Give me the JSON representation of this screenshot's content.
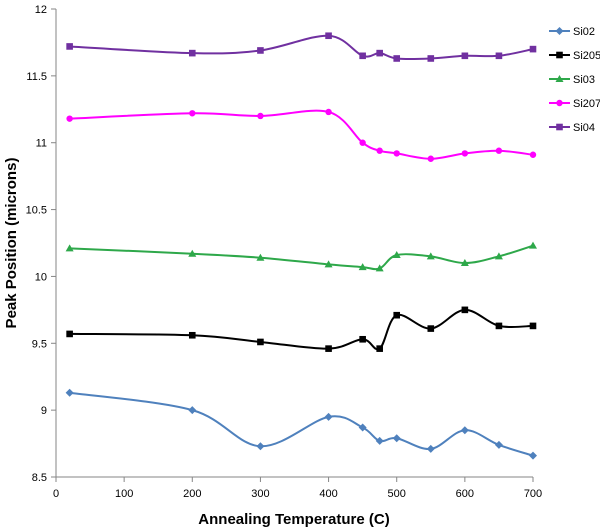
{
  "chart_data": {
    "type": "line",
    "title": "",
    "xlabel": "Annealing Temperature (C)",
    "ylabel": "Peak Position (microns)",
    "xlim": [
      0,
      700
    ],
    "ylim": [
      8.5,
      12
    ],
    "xticks": [
      0,
      100,
      200,
      300,
      400,
      500,
      600,
      700
    ],
    "yticks": [
      8.5,
      9,
      9.5,
      10,
      10.5,
      11,
      11.5,
      12
    ],
    "x": [
      20,
      200,
      300,
      400,
      450,
      475,
      500,
      550,
      600,
      650,
      700
    ],
    "grid": false,
    "legend_position": "right",
    "series": [
      {
        "name": "Si02",
        "color": "#4F81BD",
        "marker": "diamond",
        "values": [
          9.13,
          9.0,
          8.73,
          8.95,
          8.87,
          8.77,
          8.79,
          8.71,
          8.85,
          8.74,
          8.66
        ]
      },
      {
        "name": "Si205",
        "color": "#000000",
        "marker": "square",
        "values": [
          9.57,
          9.56,
          9.51,
          9.46,
          9.53,
          9.46,
          9.71,
          9.61,
          9.75,
          9.63,
          9.63
        ]
      },
      {
        "name": "Si03",
        "color": "#2EA84A",
        "marker": "triangle",
        "values": [
          10.21,
          10.17,
          10.14,
          10.09,
          10.07,
          10.06,
          10.16,
          10.15,
          10.1,
          10.15,
          10.23
        ]
      },
      {
        "name": "Si207",
        "color": "#FF00FF",
        "marker": "circle",
        "values": [
          11.18,
          11.22,
          11.2,
          11.23,
          11.0,
          10.94,
          10.92,
          10.88,
          10.92,
          10.94,
          10.91
        ]
      },
      {
        "name": "Si04",
        "color": "#7030A0",
        "marker": "square",
        "values": [
          11.72,
          11.67,
          11.69,
          11.8,
          11.65,
          11.67,
          11.63,
          11.63,
          11.65,
          11.65,
          11.7
        ]
      }
    ]
  }
}
